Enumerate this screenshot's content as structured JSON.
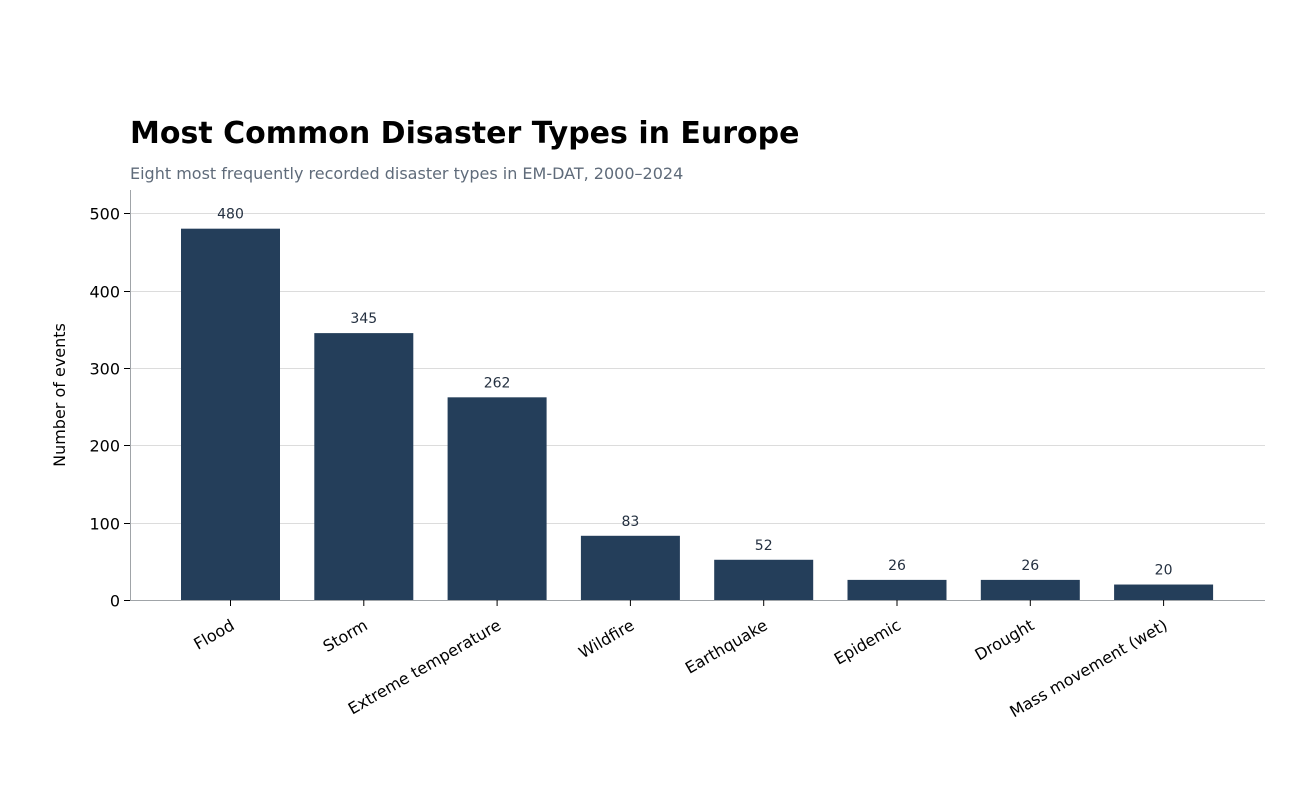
{
  "chart_data": {
    "type": "bar",
    "title": "Most Common Disaster Types in Europe",
    "subtitle": "Eight most frequently recorded disaster types in EM-DAT, 2000–2024",
    "xlabel": "",
    "ylabel": "Number of events",
    "categories": [
      "Flood",
      "Storm",
      "Extreme temperature",
      "Wildfire",
      "Earthquake",
      "Epidemic",
      "Drought",
      "Mass movement (wet)"
    ],
    "values": [
      480,
      345,
      262,
      83,
      52,
      26,
      26,
      20
    ],
    "ylim": [
      0,
      530
    ],
    "yticks": [
      0,
      100,
      200,
      300,
      400,
      500
    ],
    "grid": "horizontal",
    "legend": "none",
    "colors": {
      "bar": "#243e5a",
      "grid": "#dcdcdc",
      "axis": "#a0a4a8",
      "label": "#243040"
    }
  }
}
